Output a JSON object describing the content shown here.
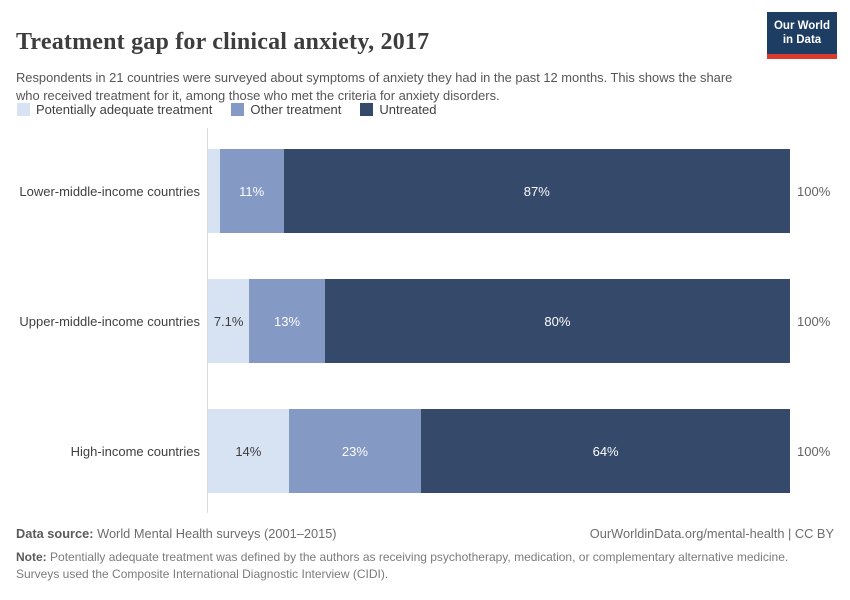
{
  "header": {
    "title": "Treatment gap for clinical anxiety, 2017",
    "subtitle": "Respondents in 21 countries were surveyed about symptoms of anxiety they had in the past 12 months. This shows the share who received treatment for it, among those who met the criteria for anxiety disorders.",
    "logo": {
      "line1": "Our World",
      "line2": "in Data",
      "bg_color": "#1d3d63",
      "accent_color": "#dc3a2e"
    }
  },
  "legend": [
    {
      "label": "Potentially adequate treatment",
      "color": "#d7e2f2"
    },
    {
      "label": "Other treatment",
      "color": "#8499c4"
    },
    {
      "label": "Untreated",
      "color": "#35496a"
    }
  ],
  "chart_data": {
    "type": "bar",
    "stacked": true,
    "orientation": "horizontal",
    "categories": [
      "Lower-middle-income countries",
      "Upper-middle-income countries",
      "High-income countries"
    ],
    "series": [
      {
        "key": "potentially-adequate-treatment",
        "name": "Potentially adequate treatment",
        "color": "#d7e2f2",
        "values": [
          2,
          7.1,
          14
        ],
        "labels": [
          "",
          "7.1%",
          "14%"
        ]
      },
      {
        "key": "other-treatment",
        "name": "Other treatment",
        "color": "#8499c4",
        "values": [
          11,
          13,
          23
        ],
        "labels": [
          "11%",
          "13%",
          "23%"
        ]
      },
      {
        "key": "untreated",
        "name": "Untreated",
        "color": "#35496a",
        "values": [
          87,
          80,
          64
        ],
        "labels": [
          "87%",
          "80%",
          "64%"
        ]
      }
    ],
    "total_label": "100%",
    "xlim": [
      0,
      100
    ],
    "grid": false,
    "legend_position": "top"
  },
  "footer": {
    "source_label": "Data source:",
    "source_text": "World Mental Health surveys (2001–2015)",
    "link": "OurWorldinData.org/mental-health | CC BY",
    "note_label": "Note:",
    "note_text": "Potentially adequate treatment was defined by the authors as receiving psychotherapy, medication, or complementary alternative medicine. Surveys used the Composite International Diagnostic Interview (CIDI)."
  }
}
